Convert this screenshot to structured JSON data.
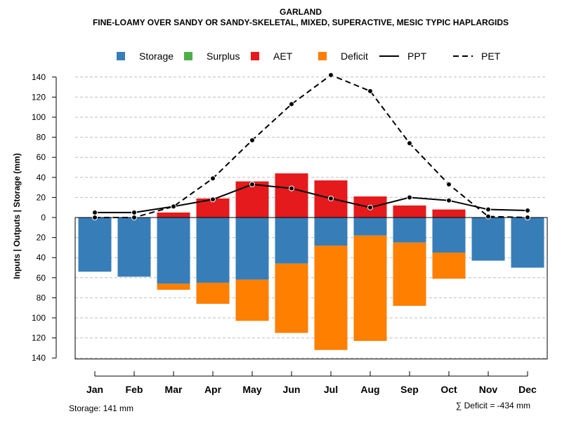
{
  "colors": {
    "storage": "#377EB8",
    "surplus": "#4DAF4A",
    "aet": "#E41A1C",
    "deficit": "#FF7F00",
    "lines": "#000000",
    "grid": "#BEBEBE"
  },
  "chart_data": {
    "type": "bar",
    "title": "GARLAND",
    "subtitle": "FINE-LOAMY OVER SANDY OR SANDY-SKELETAL, MIXED, SUPERACTIVE, MESIC TYPIC HAPLARGIDS",
    "ylabel": "Inputs | Outputs | Storage    (mm)",
    "xlabel": "",
    "ylim": [
      -141,
      150
    ],
    "yticks": [
      140,
      120,
      100,
      80,
      60,
      40,
      20,
      0,
      -20,
      -40,
      -60,
      -80,
      -100,
      -120,
      -140
    ],
    "ytick_labels": [
      "140",
      "120",
      "100",
      "80",
      "60",
      "40",
      "20",
      "0",
      "20",
      "40",
      "60",
      "80",
      "100",
      "120",
      "140"
    ],
    "grid": true,
    "legend_position": "top",
    "categories": [
      "Jan",
      "Feb",
      "Mar",
      "Apr",
      "May",
      "Jun",
      "Jul",
      "Aug",
      "Sep",
      "Oct",
      "Nov",
      "Dec"
    ],
    "legend": [
      {
        "name": "Storage",
        "kind": "box",
        "color_key": "storage"
      },
      {
        "name": "Surplus",
        "kind": "box",
        "color_key": "surplus"
      },
      {
        "name": "AET",
        "kind": "box",
        "color_key": "aet"
      },
      {
        "name": "Deficit",
        "kind": "box",
        "color_key": "deficit"
      },
      {
        "name": "PPT",
        "kind": "solid"
      },
      {
        "name": "PET",
        "kind": "dashed"
      }
    ],
    "series": [
      {
        "name": "AET",
        "kind": "bar-up",
        "color_key": "aet",
        "values": [
          0,
          0,
          5,
          19,
          36,
          44,
          37,
          21,
          12,
          8,
          0,
          0
        ]
      },
      {
        "name": "Surplus",
        "kind": "bar-up",
        "color_key": "surplus",
        "values": [
          0,
          0,
          0,
          0,
          0,
          0,
          0,
          0,
          0,
          0,
          0,
          0
        ]
      },
      {
        "name": "Storage",
        "kind": "bar-down",
        "color_key": "storage",
        "values": [
          54,
          59,
          66,
          65,
          62,
          46,
          28,
          18,
          25,
          35,
          43,
          50
        ]
      },
      {
        "name": "Deficit",
        "kind": "bar-down-stacked",
        "color_key": "deficit",
        "values": [
          0,
          0,
          6,
          21,
          41,
          69,
          104,
          105,
          63,
          26,
          0,
          0
        ]
      },
      {
        "name": "PPT",
        "kind": "line-solid",
        "values": [
          5,
          5,
          11,
          18,
          33,
          29,
          19,
          10,
          20,
          17,
          8,
          7
        ]
      },
      {
        "name": "PET",
        "kind": "line-dashed",
        "values": [
          0,
          0,
          11,
          39,
          77,
          113,
          142,
          126,
          74,
          33,
          1,
          0
        ]
      }
    ],
    "annotations": {
      "storage_total": "Storage: 141 mm",
      "deficit_total": "∑ Deficit = -434 mm"
    }
  }
}
